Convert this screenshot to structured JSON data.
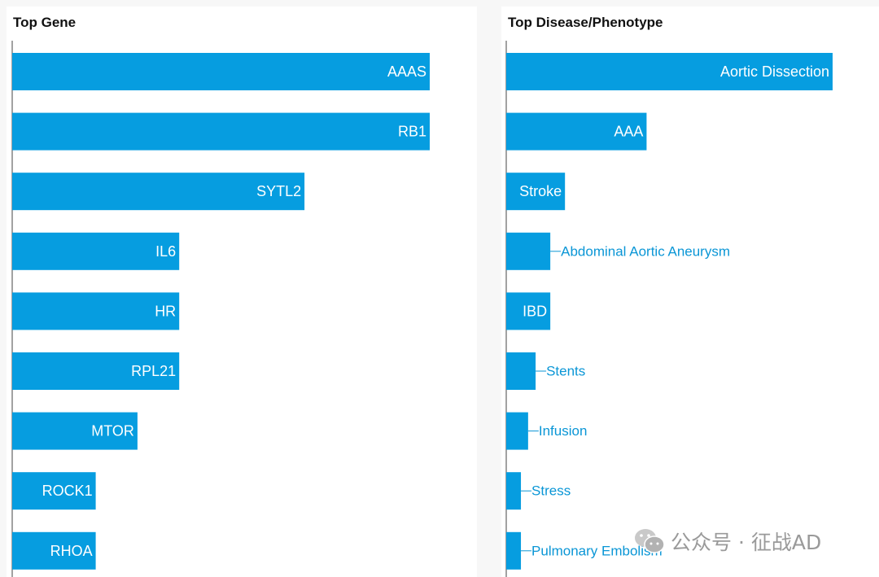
{
  "colors": {
    "bar": "#069de0",
    "axis": "#444444",
    "label_inside": "#ffffff",
    "label_outside": "#0a96d6",
    "title": "#111111"
  },
  "watermark": {
    "text": "公众号 · 征战AD",
    "icon": "wechat-icon"
  },
  "chart_data": [
    {
      "type": "bar",
      "orientation": "horizontal",
      "title": "Top Gene",
      "xlabel": "",
      "ylabel": "",
      "grid": false,
      "categories": [
        "AAAS",
        "RB1",
        "SYTL2",
        "IL6",
        "HR",
        "RPL21",
        "MTOR",
        "ROCK1",
        "RHOA"
      ],
      "values": [
        100,
        100,
        70,
        40,
        40,
        40,
        30,
        20,
        20
      ],
      "xlim": [
        0,
        100
      ]
    },
    {
      "type": "bar",
      "orientation": "horizontal",
      "title": "Top Disease/Phenotype",
      "xlabel": "",
      "ylabel": "",
      "grid": false,
      "categories": [
        "Aortic Dissection",
        "AAA",
        "Stroke",
        "Abdominal Aortic Aneurysm",
        "IBD",
        "Stents",
        "Infusion",
        "Stress",
        "Pulmonary Embolism"
      ],
      "values": [
        100,
        43,
        18,
        13.5,
        13.5,
        9,
        6.7,
        4.5,
        4.5
      ],
      "xlim": [
        0,
        100
      ]
    }
  ]
}
